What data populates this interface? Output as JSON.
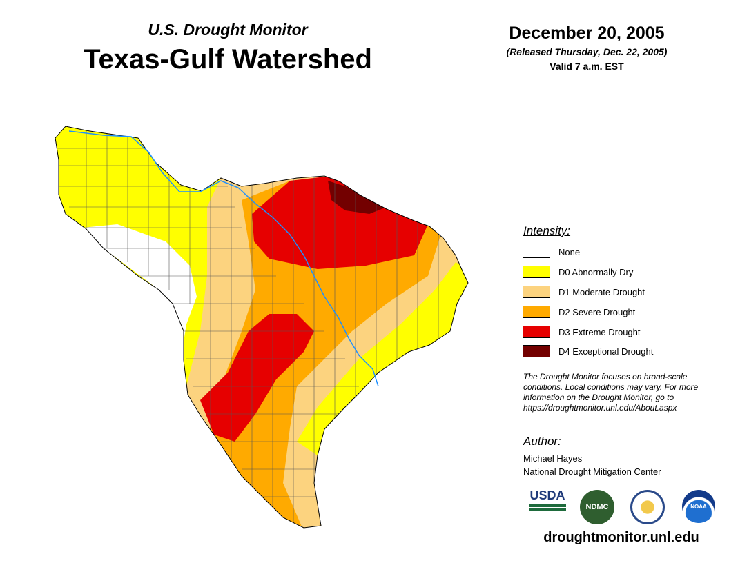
{
  "header": {
    "subtitle": "U.S. Drought Monitor",
    "title": "Texas-Gulf Watershed",
    "date": "December 20, 2005",
    "released": "(Released Thursday, Dec. 22, 2005)",
    "valid": "Valid 7 a.m. EST"
  },
  "legend": {
    "title": "Intensity:",
    "items": [
      {
        "label": "None",
        "color": "#ffffff"
      },
      {
        "label": "D0 Abnormally Dry",
        "color": "#ffff00"
      },
      {
        "label": "D1 Moderate Drought",
        "color": "#fcd37f"
      },
      {
        "label": "D2 Severe Drought",
        "color": "#ffaa00"
      },
      {
        "label": "D3 Extreme Drought",
        "color": "#e60000"
      },
      {
        "label": "D4 Exceptional Drought",
        "color": "#730000"
      }
    ]
  },
  "note": "The Drought Monitor focuses on broad-scale conditions. Local conditions may vary. For more information on the Drought Monitor, go to https://droughtmonitor.unl.edu/About.aspx",
  "author": {
    "title": "Author:",
    "name": "Michael Hayes",
    "org": "National Drought Mitigation Center"
  },
  "logos": {
    "usda": "USDA",
    "ndmc": "NDMC",
    "noaa": "NOAA"
  },
  "website": "droughtmonitor.unl.edu",
  "river_color": "#1e90ff"
}
